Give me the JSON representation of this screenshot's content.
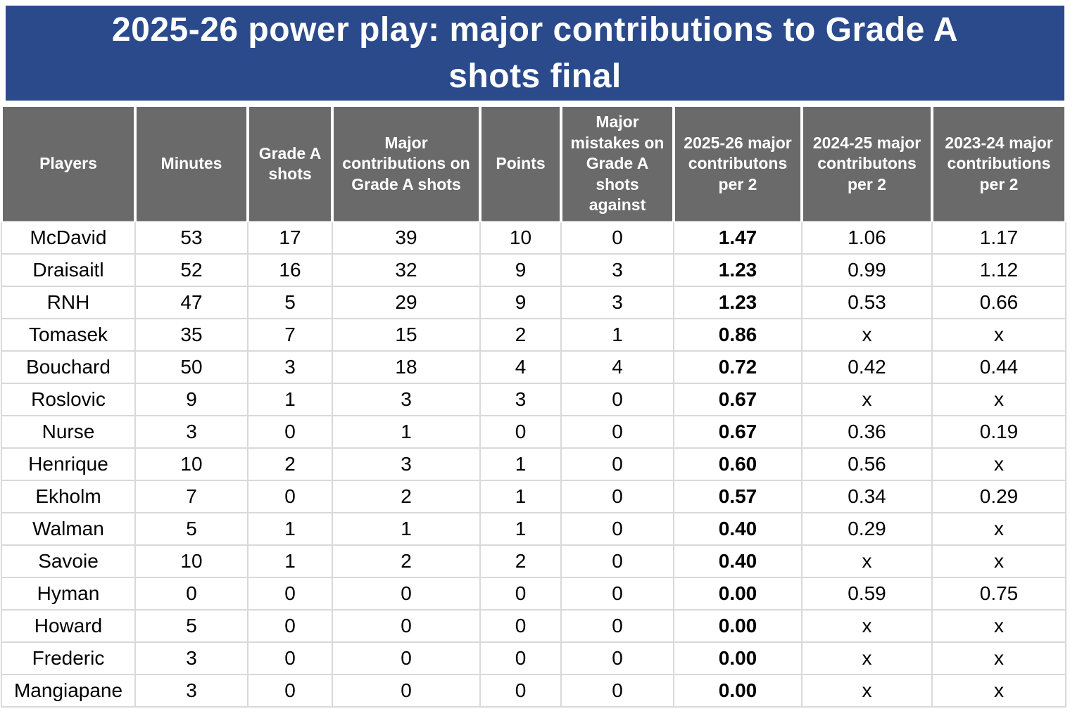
{
  "title": {
    "lines": [
      "2025-26 power play: major contributions to Grade A",
      "shots final"
    ]
  },
  "colors": {
    "banner_blue": "#2a4a8c",
    "header_gray": "#6a6a6a",
    "grid_line": "#d9d9d9",
    "title_text": "#ffffff",
    "header_text": "#ffffff",
    "body_text": "#000000"
  },
  "table": {
    "columns": [
      {
        "key": "player",
        "label": "Players"
      },
      {
        "key": "minutes",
        "label": "Minutes"
      },
      {
        "key": "grade-a-shots",
        "label": "Grade A shots"
      },
      {
        "key": "major-contributions",
        "label": "Major contributions on Grade A shots"
      },
      {
        "key": "points",
        "label": "Points"
      },
      {
        "key": "major-mistakes",
        "label": "Major mistakes on Grade A shots against"
      },
      {
        "key": "per2-2025-26",
        "label": "2025-26 major contributons per 2",
        "emphasis": true
      },
      {
        "key": "per2-2024-25",
        "label": "2024-25 major contributons per 2"
      },
      {
        "key": "per2-2023-24",
        "label": "2023-24 major contributions per 2"
      }
    ],
    "rows": [
      [
        "McDavid",
        "53",
        "17",
        "39",
        "10",
        "0",
        "1.47",
        "1.06",
        "1.17"
      ],
      [
        "Draisaitl",
        "52",
        "16",
        "32",
        "9",
        "3",
        "1.23",
        "0.99",
        "1.12"
      ],
      [
        "RNH",
        "47",
        "5",
        "29",
        "9",
        "3",
        "1.23",
        "0.53",
        "0.66"
      ],
      [
        "Tomasek",
        "35",
        "7",
        "15",
        "2",
        "1",
        "0.86",
        "x",
        "x"
      ],
      [
        "Bouchard",
        "50",
        "3",
        "18",
        "4",
        "4",
        "0.72",
        "0.42",
        "0.44"
      ],
      [
        "Roslovic",
        "9",
        "1",
        "3",
        "3",
        "0",
        "0.67",
        "x",
        "x"
      ],
      [
        "Nurse",
        "3",
        "0",
        "1",
        "0",
        "0",
        "0.67",
        "0.36",
        "0.19"
      ],
      [
        "Henrique",
        "10",
        "2",
        "3",
        "1",
        "0",
        "0.60",
        "0.56",
        "x"
      ],
      [
        "Ekholm",
        "7",
        "0",
        "2",
        "1",
        "0",
        "0.57",
        "0.34",
        "0.29"
      ],
      [
        "Walman",
        "5",
        "1",
        "1",
        "1",
        "0",
        "0.40",
        "0.29",
        "x"
      ],
      [
        "Savoie",
        "10",
        "1",
        "2",
        "2",
        "0",
        "0.40",
        "x",
        "x"
      ],
      [
        "Hyman",
        "0",
        "0",
        "0",
        "0",
        "0",
        "0.00",
        "0.59",
        "0.75"
      ],
      [
        "Howard",
        "5",
        "0",
        "0",
        "0",
        "0",
        "0.00",
        "x",
        "x"
      ],
      [
        "Frederic",
        "3",
        "0",
        "0",
        "0",
        "0",
        "0.00",
        "x",
        "x"
      ],
      [
        "Mangiapane",
        "3",
        "0",
        "0",
        "0",
        "0",
        "0.00",
        "x",
        "x"
      ]
    ]
  }
}
